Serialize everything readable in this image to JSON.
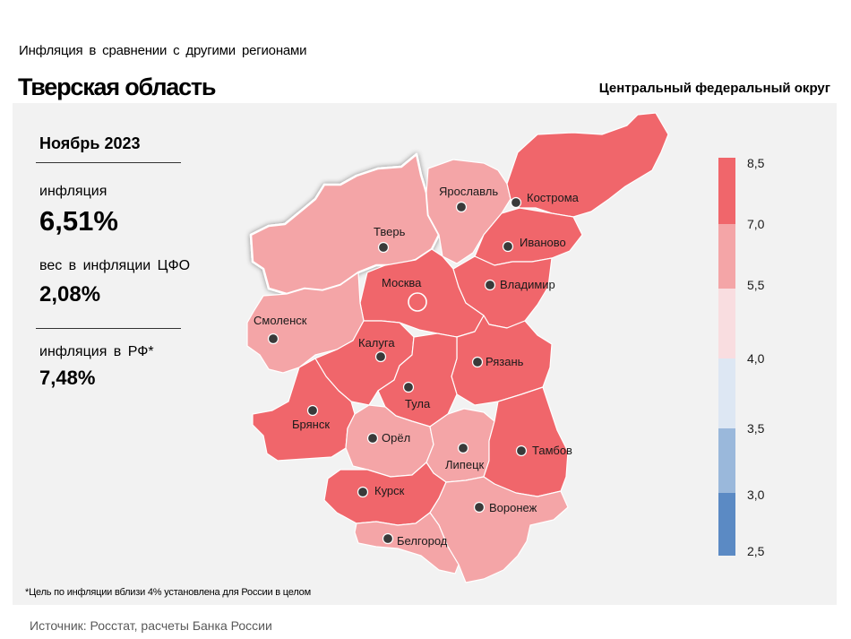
{
  "header": {
    "subtitle": "Инфляция  в сравнении  с другими  регионами",
    "title": "Тверская область",
    "district": "Центральный федеральный округ"
  },
  "stats": {
    "period": "Ноябрь 2023",
    "inflation_label": "инфляция",
    "inflation_value": "6,51%",
    "weight_label": "вес в инфляции  ЦФО",
    "weight_value": "2,08%",
    "rf_label": "инфляция  в РФ*",
    "rf_value": "7,48%"
  },
  "legend": {
    "ticks": [
      "8,5",
      "7,0",
      "5,5",
      "4,0",
      "3,5",
      "3,0",
      "2,5"
    ],
    "colors": [
      "#f0666b",
      "#f4a5a7",
      "#f9dde0",
      "#dde7f3",
      "#9ab8db",
      "#5b8ac4"
    ]
  },
  "map": {
    "selected_region": "Тверь",
    "highlight_color": "#ffffff",
    "regions": [
      {
        "name": "Тверь",
        "color": "#f4a5a7"
      },
      {
        "name": "Ярославль",
        "color": "#f4a5a7"
      },
      {
        "name": "Кострома",
        "color": "#f0666b"
      },
      {
        "name": "Иваново",
        "color": "#f0666b"
      },
      {
        "name": "Москва",
        "color": "#f0666b"
      },
      {
        "name": "Владимир",
        "color": "#f0666b"
      },
      {
        "name": "Смоленск",
        "color": "#f4a5a7"
      },
      {
        "name": "Калуга",
        "color": "#f0666b"
      },
      {
        "name": "Рязань",
        "color": "#f0666b"
      },
      {
        "name": "Тула",
        "color": "#f0666b"
      },
      {
        "name": "Брянск",
        "color": "#f0666b"
      },
      {
        "name": "Орёл",
        "color": "#f4a5a7"
      },
      {
        "name": "Липецк",
        "color": "#f4a5a7"
      },
      {
        "name": "Тамбов",
        "color": "#f0666b"
      },
      {
        "name": "Курск",
        "color": "#f0666b"
      },
      {
        "name": "Воронеж",
        "color": "#f4a5a7"
      },
      {
        "name": "Белгород",
        "color": "#f4a5a7"
      }
    ]
  },
  "footnote": "*Цель по инфляции вблизи 4% установлена для России в целом",
  "source": "Источник: Росстат, расчеты Банка России"
}
